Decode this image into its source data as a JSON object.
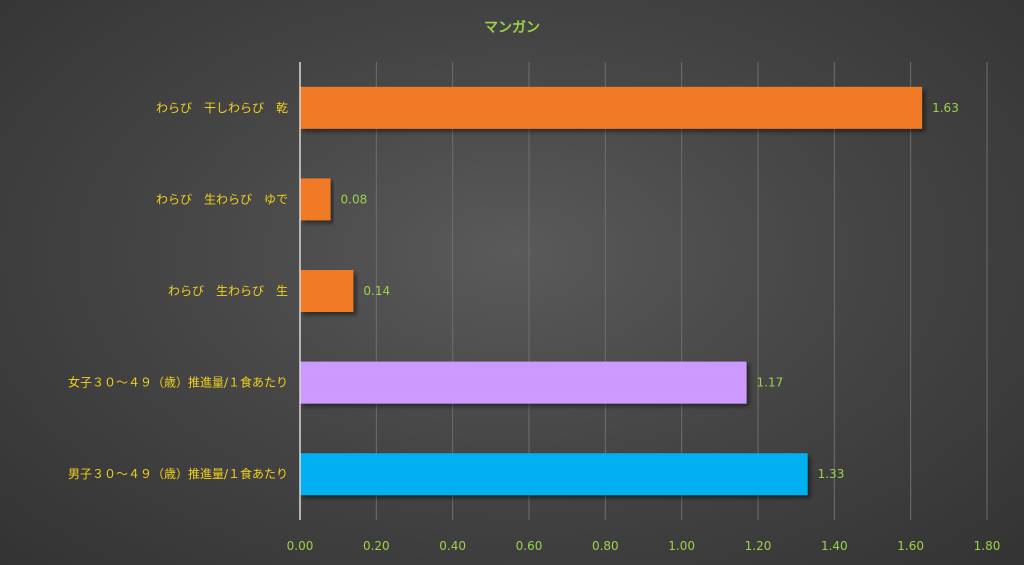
{
  "chart_data": {
    "type": "bar",
    "orientation": "horizontal",
    "title": "マンガン",
    "categories": [
      "わらび　干しわらび　乾",
      "わらび　生わらび　ゆで",
      "わらび　生わらび　生",
      "女子３０～４９（歳）推進量/１食あたり",
      "男子３０～４９（歳）推進量/１食あたり"
    ],
    "values": [
      1.63,
      0.08,
      0.14,
      1.17,
      1.33
    ],
    "value_labels": [
      "1.63",
      "0.08",
      "0.14",
      "1.17",
      "1.33"
    ],
    "colors": [
      "#f07a28",
      "#f07a28",
      "#f07a28",
      "#cc99ff",
      "#00b0f0"
    ],
    "xlim": [
      0,
      1.8
    ],
    "xticks": [
      "0.00",
      "0.20",
      "0.40",
      "0.60",
      "0.80",
      "1.00",
      "1.20",
      "1.40",
      "1.60",
      "1.80"
    ],
    "grid": true,
    "legend": "none"
  }
}
